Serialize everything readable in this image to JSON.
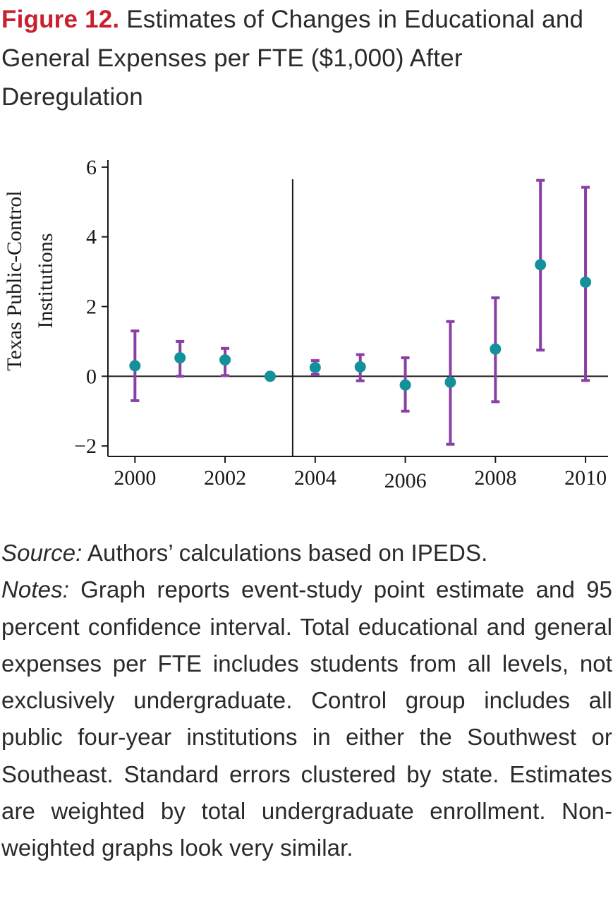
{
  "figure": {
    "label": "Figure 12.",
    "title": "Estimates of Changes in Educational and General Expenses per FTE ($1,000) After Deregulation"
  },
  "chart_data": {
    "type": "scatter",
    "style": "point estimates with 95% confidence interval error bars",
    "ylabel_line1": "Texas Public-Control",
    "ylabel_line2": "Institutions",
    "xlabel": "",
    "x_ticks": [
      "2000",
      "2002",
      "2004",
      "2006",
      "2008",
      "2010"
    ],
    "y_ticks": [
      "6",
      "4",
      "2",
      "0",
      "−2"
    ],
    "xlim": [
      1999.4,
      2010.5
    ],
    "ylim": [
      -2.3,
      6.2
    ],
    "reference_line_x": 2003.5,
    "reference_line_y": 0,
    "grid": false,
    "legend": "none",
    "colors": {
      "point": "#12919a",
      "error_bar": "#8a3fa6",
      "axis": "#1a1a1a"
    },
    "points": [
      {
        "x": 2000,
        "y": 0.3,
        "lo": -0.7,
        "hi": 1.3
      },
      {
        "x": 2001,
        "y": 0.53,
        "lo": 0.0,
        "hi": 1.0
      },
      {
        "x": 2002,
        "y": 0.47,
        "lo": 0.02,
        "hi": 0.8
      },
      {
        "x": 2003,
        "y": 0.0
      },
      {
        "x": 2004,
        "y": 0.25,
        "lo": 0.05,
        "hi": 0.45
      },
      {
        "x": 2005,
        "y": 0.27,
        "lo": -0.13,
        "hi": 0.62
      },
      {
        "x": 2006,
        "y": -0.25,
        "lo": -1.0,
        "hi": 0.53
      },
      {
        "x": 2007,
        "y": -0.17,
        "lo": -1.95,
        "hi": 1.57
      },
      {
        "x": 2008,
        "y": 0.78,
        "lo": -0.73,
        "hi": 2.25
      },
      {
        "x": 2009,
        "y": 3.2,
        "lo": 0.75,
        "hi": 5.62
      },
      {
        "x": 2010,
        "y": 2.7,
        "lo": -0.12,
        "hi": 5.42
      }
    ]
  },
  "notes": {
    "source_label": "Source:",
    "source_text": " Authors’ calculations based on IPEDS.",
    "notes_label": "Notes:",
    "notes_text": " Graph reports event-study point estimate and 95 percent confidence interval. Total educa­tional and general expenses per FTE includes stu­dents from all levels, not exclusively undergradu­ate. Control group includes all public four-year institutions in either the Southwest or Southeast. Standard errors clustered by state. Estimates are weighted by total undergraduate enrollment. Non­weighted graphs look very similar."
  }
}
